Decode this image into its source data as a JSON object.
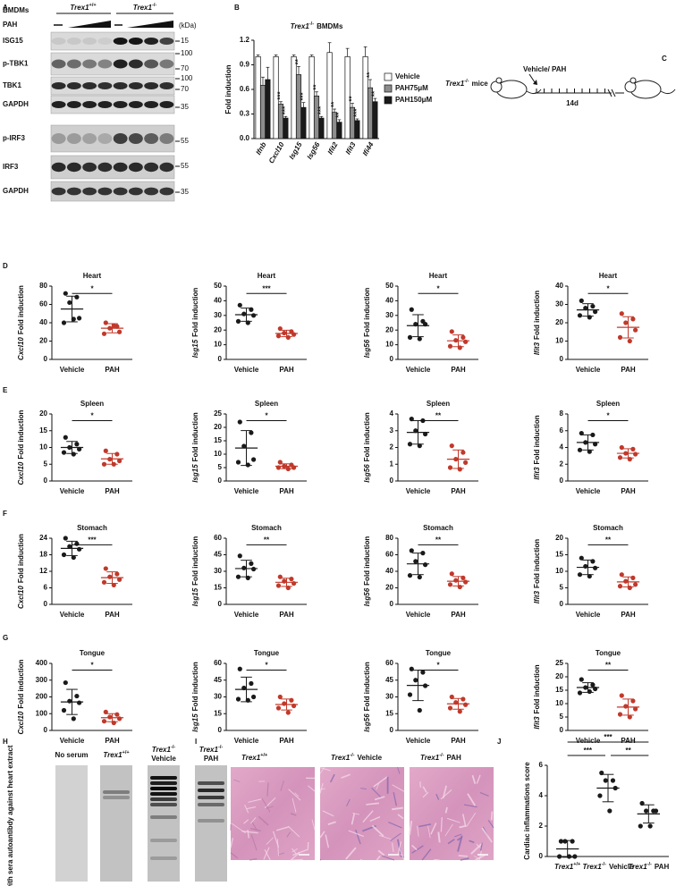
{
  "panel_labels": [
    "A",
    "B",
    "C",
    "D",
    "E",
    "F",
    "G",
    "H",
    "I",
    "J"
  ],
  "blot": {
    "cell": "BMDMs",
    "groups": [
      {
        "gene": "Trex1",
        "sup": "+/+"
      },
      {
        "gene": "Trex1",
        "sup": "-/-"
      }
    ],
    "treatment": "PAH",
    "unit": "(kDa)",
    "rows": [
      {
        "label": "ISG15",
        "markers": [
          15
        ]
      },
      {
        "label": "p-TBK1",
        "markers": [
          100,
          70
        ]
      },
      {
        "label": "TBK1",
        "markers": [
          100,
          70
        ]
      },
      {
        "label": "GAPDH",
        "markers": [
          35
        ]
      },
      {
        "label": "p-IRF3",
        "markers": [
          55
        ]
      },
      {
        "label": "IRF3",
        "markers": [
          55
        ]
      },
      {
        "label": "GAPDH",
        "markers": [
          35
        ]
      }
    ]
  },
  "schematic": {
    "mouse": {
      "gene": "Trex1",
      "sup": "-/-",
      "suffix": "mice"
    },
    "treatment": "Vehicle/ PAH",
    "duration": "14d"
  },
  "immunoblot": {
    "ylabel": "IB with sera autoantibdy against heart extract",
    "lanes": [
      {
        "text": "No serum"
      },
      {
        "gene": "Trex1",
        "sup": "+/+"
      },
      {
        "gene": "Trex1",
        "sup": "-/-",
        "suffix": "Vehicle"
      },
      {
        "gene": "Trex1",
        "sup": "-/-",
        "suffix": "PAH"
      }
    ]
  },
  "histology": {
    "images": [
      {
        "gene": "Trex1",
        "sup": "+/+"
      },
      {
        "gene": "Trex1",
        "sup": "-/-",
        "suffix": "Vehicle"
      },
      {
        "gene": "Trex1",
        "sup": "-/-",
        "suffix": "PAH"
      }
    ]
  },
  "chart_data": [
    {
      "type": "bar",
      "title": {
        "gene": "Trex1",
        "sup": "-/-",
        "suffix": "BMDMs"
      },
      "ylabel": "Fold induction",
      "categories": [
        "Ifnb",
        "Cxcl10",
        "Isg15",
        "Isg56",
        "Ifit2",
        "Ifit3",
        "Ifi44"
      ],
      "series": [
        {
          "name": "Vehicle",
          "color": "#ffffff",
          "values": [
            1,
            1,
            1,
            1,
            1.05,
            1,
            1
          ],
          "errors": [
            0.02,
            0.02,
            0.02,
            0.02,
            0.12,
            0.1,
            0.12
          ]
        },
        {
          "name": "PAH75μM",
          "color": "#8c8c8c",
          "values": [
            0.65,
            0.42,
            0.78,
            0.52,
            0.32,
            0.38,
            0.62
          ],
          "errors": [
            0.1,
            0.03,
            0.1,
            0.05,
            0.04,
            0.05,
            0.1
          ],
          "significance": [
            null,
            "***",
            "**",
            "**",
            "**",
            "**",
            "**"
          ]
        },
        {
          "name": "PAH150μM",
          "color": "#1a1a1a",
          "values": [
            0.72,
            0.25,
            0.38,
            0.25,
            0.2,
            0.22,
            0.45
          ],
          "errors": [
            0.15,
            0.02,
            0.06,
            0.02,
            0.03,
            0.02,
            0.04
          ],
          "significance": [
            null,
            "***",
            "***",
            "***",
            "**",
            "***",
            "**"
          ]
        }
      ],
      "ylim": [
        0,
        1.2
      ],
      "yticks": [
        {
          "value": 0,
          "label": "0.0"
        },
        0.3,
        0.6,
        0.9,
        1.2
      ]
    },
    {
      "type": "dot",
      "title": "Heart",
      "ylabel": {
        "gene": "Cxcl10",
        "text": "Fold induction"
      },
      "categories": [
        "Vehicle",
        "PAH"
      ],
      "groups": [
        {
          "color": "#1a1a1a",
          "values": [
            72,
            68,
            62,
            45,
            40,
            44
          ],
          "mean": 55,
          "sd": 14
        },
        {
          "color": "#c0392b",
          "values": [
            40,
            36,
            34,
            30,
            28,
            37
          ],
          "mean": 34,
          "sd": 5
        }
      ],
      "ylim": [
        0,
        80
      ],
      "yticks": [
        0,
        20,
        40,
        60,
        80
      ],
      "significance": "*"
    },
    {
      "type": "dot",
      "title": "Heart",
      "ylabel": {
        "gene": "Isg15",
        "text": "Fold induction"
      },
      "categories": [
        "Vehicle",
        "PAH"
      ],
      "groups": [
        {
          "color": "#1a1a1a",
          "values": [
            37,
            34,
            31,
            30,
            26,
            25
          ],
          "mean": 30.5,
          "sd": 4.5
        },
        {
          "color": "#c0392b",
          "values": [
            21,
            19,
            18,
            17,
            16,
            15
          ],
          "mean": 17.7,
          "sd": 2.2
        }
      ],
      "ylim": [
        0,
        50
      ],
      "yticks": [
        0,
        10,
        20,
        30,
        40,
        50
      ],
      "significance": "***"
    },
    {
      "type": "dot",
      "title": "Heart",
      "ylabel": {
        "gene": "Isg56",
        "text": "Fold induction"
      },
      "categories": [
        "Vehicle",
        "PAH"
      ],
      "groups": [
        {
          "color": "#1a1a1a",
          "values": [
            34,
            26,
            24,
            24,
            15,
            14
          ],
          "mean": 23,
          "sd": 7.5
        },
        {
          "color": "#c0392b",
          "values": [
            19,
            15,
            13,
            12,
            9,
            8
          ],
          "mean": 12.7,
          "sd": 4
        }
      ],
      "ylim": [
        0,
        50
      ],
      "yticks": [
        0,
        10,
        20,
        30,
        40,
        50
      ],
      "significance": "*"
    },
    {
      "type": "dot",
      "title": "Heart",
      "ylabel": {
        "gene": "Ifit3",
        "text": "Fold induction"
      },
      "categories": [
        "Vehicle",
        "PAH"
      ],
      "groups": [
        {
          "color": "#1a1a1a",
          "values": [
            32,
            29,
            28,
            26,
            24,
            23
          ],
          "mean": 27,
          "sd": 3.4
        },
        {
          "color": "#c0392b",
          "values": [
            25,
            22,
            20,
            16,
            12,
            10
          ],
          "mean": 17.5,
          "sd": 5.8
        }
      ],
      "ylim": [
        0,
        40
      ],
      "yticks": [
        0,
        10,
        20,
        30,
        40
      ],
      "significance": "*"
    },
    {
      "type": "dot",
      "title": "Spleen",
      "ylabel": {
        "gene": "Cxcl10",
        "text": "Fold induction"
      },
      "categories": [
        "Vehicle",
        "PAH"
      ],
      "groups": [
        {
          "color": "#1a1a1a",
          "values": [
            13,
            11,
            10,
            9.5,
            8.5,
            8
          ],
          "mean": 10,
          "sd": 1.8
        },
        {
          "color": "#c0392b",
          "values": [
            9,
            8,
            6.5,
            6,
            5,
            5
          ],
          "mean": 6.6,
          "sd": 1.6
        }
      ],
      "ylim": [
        0,
        20
      ],
      "yticks": [
        0,
        5,
        10,
        15,
        20
      ],
      "significance": "*"
    },
    {
      "type": "dot",
      "title": "Spleen",
      "ylabel": {
        "gene": "Isg15",
        "text": "Fold induction"
      },
      "categories": [
        "Vehicle",
        "PAH"
      ],
      "groups": [
        {
          "color": "#1a1a1a",
          "values": [
            22,
            18,
            13,
            8,
            7,
            6
          ],
          "mean": 12.3,
          "sd": 6.5
        },
        {
          "color": "#c0392b",
          "values": [
            7,
            6,
            5.5,
            5,
            5,
            4.5
          ],
          "mean": 5.5,
          "sd": 0.9
        }
      ],
      "ylim": [
        0,
        25
      ],
      "yticks": [
        0,
        5,
        10,
        15,
        20,
        25
      ],
      "significance": "*"
    },
    {
      "type": "dot",
      "title": "Spleen",
      "ylabel": {
        "gene": "Isg56",
        "text": "Fold induction"
      },
      "categories": [
        "Vehicle",
        "PAH"
      ],
      "groups": [
        {
          "color": "#1a1a1a",
          "values": [
            3.7,
            3.6,
            3,
            2.8,
            2.2,
            2.1
          ],
          "mean": 2.9,
          "sd": 0.7
        },
        {
          "color": "#c0392b",
          "values": [
            2.1,
            1.7,
            1.3,
            1.1,
            0.8,
            0.7
          ],
          "mean": 1.3,
          "sd": 0.55
        }
      ],
      "ylim": [
        0,
        4
      ],
      "yticks": [
        0,
        1,
        2,
        3,
        4
      ],
      "significance": "**"
    },
    {
      "type": "dot",
      "title": "Spleen",
      "ylabel": {
        "gene": "Ifit3",
        "text": "Fold induction"
      },
      "categories": [
        "Vehicle",
        "PAH"
      ],
      "groups": [
        {
          "color": "#1a1a1a",
          "values": [
            5.7,
            5.5,
            4.6,
            4.4,
            3.7,
            3.5
          ],
          "mean": 4.6,
          "sd": 0.9
        },
        {
          "color": "#c0392b",
          "values": [
            4,
            3.8,
            3.3,
            3.2,
            2.8,
            2.6
          ],
          "mean": 3.3,
          "sd": 0.55
        }
      ],
      "ylim": [
        0,
        8
      ],
      "yticks": [
        0,
        2,
        4,
        6,
        8
      ],
      "significance": "*"
    },
    {
      "type": "dot",
      "title": "Stomach",
      "ylabel": {
        "gene": "Cxcl10",
        "text": "Fold induction"
      },
      "categories": [
        "Vehicle",
        "PAH"
      ],
      "groups": [
        {
          "color": "#1a1a1a",
          "values": [
            24,
            22,
            21,
            20,
            18,
            17
          ],
          "mean": 20.3,
          "sd": 2.6
        },
        {
          "color": "#c0392b",
          "values": [
            13,
            11,
            10,
            9,
            8,
            7
          ],
          "mean": 9.7,
          "sd": 2.1
        }
      ],
      "ylim": [
        0,
        24
      ],
      "yticks": [
        0,
        6,
        12,
        18,
        24
      ],
      "significance": "***"
    },
    {
      "type": "dot",
      "title": "Stomach",
      "ylabel": {
        "gene": "Isg15",
        "text": "Fold induction"
      },
      "categories": [
        "Vehicle",
        "PAH"
      ],
      "groups": [
        {
          "color": "#1a1a1a",
          "values": [
            44,
            37,
            33,
            32,
            25,
            24
          ],
          "mean": 32.5,
          "sd": 7.5
        },
        {
          "color": "#c0392b",
          "values": [
            25,
            23,
            21,
            19,
            17,
            15
          ],
          "mean": 20,
          "sd": 3.7
        }
      ],
      "ylim": [
        0,
        60
      ],
      "yticks": [
        0,
        15,
        30,
        45,
        60
      ],
      "significance": "**"
    },
    {
      "type": "dot",
      "title": "Stomach",
      "ylabel": {
        "gene": "Isg56",
        "text": "Fold induction"
      },
      "categories": [
        "Vehicle",
        "PAH"
      ],
      "groups": [
        {
          "color": "#1a1a1a",
          "values": [
            65,
            62,
            52,
            48,
            35,
            33
          ],
          "mean": 49,
          "sd": 13
        },
        {
          "color": "#c0392b",
          "values": [
            37,
            32,
            29,
            27,
            24,
            21
          ],
          "mean": 28,
          "sd": 5.7
        }
      ],
      "ylim": [
        0,
        80
      ],
      "yticks": [
        0,
        20,
        40,
        60,
        80
      ],
      "significance": "**"
    },
    {
      "type": "dot",
      "title": "Stomach",
      "ylabel": {
        "gene": "Ifit3",
        "text": "Fold induction"
      },
      "categories": [
        "Vehicle",
        "PAH"
      ],
      "groups": [
        {
          "color": "#1a1a1a",
          "values": [
            14,
            13,
            11.5,
            11,
            9,
            8.5
          ],
          "mean": 11.2,
          "sd": 2.2
        },
        {
          "color": "#c0392b",
          "values": [
            9,
            8,
            7,
            6,
            5.5,
            5
          ],
          "mean": 6.8,
          "sd": 1.5
        }
      ],
      "ylim": [
        0,
        20
      ],
      "yticks": [
        0,
        5,
        10,
        15,
        20
      ],
      "significance": "**"
    },
    {
      "type": "dot",
      "title": "Tongue",
      "ylabel": {
        "gene": "Cxcl10",
        "text": "Fold induction"
      },
      "categories": [
        "Vehicle",
        "PAH"
      ],
      "groups": [
        {
          "color": "#1a1a1a",
          "values": [
            285,
            205,
            175,
            165,
            120,
            70
          ],
          "mean": 170,
          "sd": 75
        },
        {
          "color": "#c0392b",
          "values": [
            110,
            95,
            80,
            70,
            55,
            45
          ],
          "mean": 76,
          "sd": 24
        }
      ],
      "ylim": [
        0,
        400
      ],
      "yticks": [
        0,
        100,
        200,
        300,
        400
      ],
      "significance": "*"
    },
    {
      "type": "dot",
      "title": "Tongue",
      "ylabel": {
        "gene": "Isg15",
        "text": "Fold induction"
      },
      "categories": [
        "Vehicle",
        "PAH"
      ],
      "groups": [
        {
          "color": "#1a1a1a",
          "values": [
            55,
            42,
            38,
            30,
            28,
            27
          ],
          "mean": 36.7,
          "sd": 11
        },
        {
          "color": "#c0392b",
          "values": [
            30,
            27,
            24,
            22,
            20,
            16
          ],
          "mean": 23.2,
          "sd": 4.9
        }
      ],
      "ylim": [
        0,
        60
      ],
      "yticks": [
        0,
        15,
        30,
        45,
        60
      ],
      "significance": "*"
    },
    {
      "type": "dot",
      "title": "Tongue",
      "ylabel": {
        "gene": "Isg56",
        "text": "Fold induction"
      },
      "categories": [
        "Vehicle",
        "PAH"
      ],
      "groups": [
        {
          "color": "#1a1a1a",
          "values": [
            55,
            52,
            45,
            40,
            32,
            18
          ],
          "mean": 40.3,
          "sd": 13.6
        },
        {
          "color": "#c0392b",
          "values": [
            30,
            28,
            25,
            23,
            20,
            17
          ],
          "mean": 23.8,
          "sd": 4.8
        }
      ],
      "ylim": [
        0,
        60
      ],
      "yticks": [
        0,
        15,
        30,
        45,
        60
      ],
      "significance": "*"
    },
    {
      "type": "dot",
      "title": "Tongue",
      "ylabel": {
        "gene": "Ifit3",
        "text": "Fold induction"
      },
      "categories": [
        "Vehicle",
        "PAH"
      ],
      "groups": [
        {
          "color": "#1a1a1a",
          "values": [
            19,
            17,
            16,
            15.5,
            14,
            14.5
          ],
          "mean": 16,
          "sd": 1.8
        },
        {
          "color": "#c0392b",
          "values": [
            13,
            11,
            9,
            8,
            6,
            5
          ],
          "mean": 8.7,
          "sd": 3
        }
      ],
      "ylim": [
        0,
        25
      ],
      "yticks": [
        0,
        5,
        10,
        15,
        20,
        25
      ],
      "significance": "**"
    },
    {
      "type": "dot",
      "ylabel": "Cardiac inflammations score",
      "categories": [
        {
          "gene": "Trex1",
          "sup": "+/+"
        },
        {
          "gene": "Trex1",
          "sup": "-/-",
          "suffix": "Vehicle"
        },
        {
          "gene": "Trex1",
          "sup": "-/-",
          "suffix": "PAH"
        }
      ],
      "groups": [
        {
          "color": "#1a1a1a",
          "values": [
            1,
            1,
            1,
            0,
            0,
            0
          ],
          "mean": 0.5,
          "sd": 0.55
        },
        {
          "color": "#1a1a1a",
          "values": [
            5.5,
            5,
            5,
            4.5,
            4,
            3
          ],
          "mean": 4.5,
          "sd": 0.9
        },
        {
          "color": "#1a1a1a",
          "values": [
            3.5,
            3,
            3,
            3,
            2,
            2
          ],
          "mean": 2.8,
          "sd": 0.6
        }
      ],
      "ylim": [
        0,
        6
      ],
      "yticks": [
        0,
        2,
        4,
        6
      ],
      "significance": [
        "***",
        "***",
        "**"
      ]
    }
  ]
}
